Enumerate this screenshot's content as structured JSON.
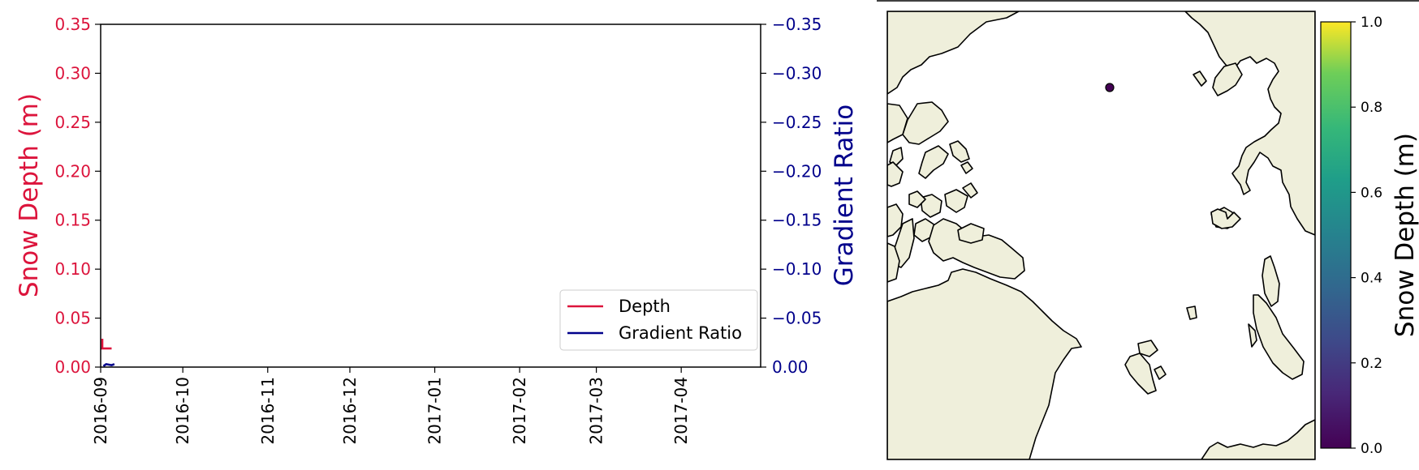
{
  "chart_data": [
    {
      "type": "line",
      "title": "",
      "xlabel": "",
      "x_range": [
        "2016-09-01",
        "2017-04-30"
      ],
      "x_ticks": [
        "2016-09",
        "2016-10",
        "2016-11",
        "2016-12",
        "2017-01",
        "2017-02",
        "2017-03",
        "2017-04"
      ],
      "left_axis": {
        "label": "Snow Depth (m)",
        "color": "#dc143c",
        "ylim": [
          0.0,
          0.35
        ],
        "ticks": [
          "0.00",
          "0.05",
          "0.10",
          "0.15",
          "0.20",
          "0.25",
          "0.30",
          "0.35"
        ]
      },
      "right_axis": {
        "label": "Gradient Ratio",
        "color": "#00008b",
        "ylim": [
          0.0,
          -0.35
        ],
        "inverted": true,
        "ticks": [
          "0.00",
          "−0.05",
          "−0.10",
          "−0.15",
          "−0.20",
          "−0.25",
          "−0.30",
          "−0.35"
        ]
      },
      "series": [
        {
          "name": "Depth",
          "axis": "left",
          "color": "#dc143c",
          "points": [
            {
              "x": "2016-09-01",
              "y": 0.019
            },
            {
              "x": "2016-09-05",
              "y": 0.019
            }
          ]
        },
        {
          "name": "Gradient Ratio",
          "axis": "right",
          "color": "#00008b",
          "points": [
            {
              "x": "2016-09-02",
              "y": -0.001
            },
            {
              "x": "2016-09-03",
              "y": -0.003
            },
            {
              "x": "2016-09-05",
              "y": -0.002
            },
            {
              "x": "2016-09-06",
              "y": -0.003
            }
          ]
        }
      ],
      "legend": {
        "position": "lower-right",
        "entries": [
          "Depth",
          "Gradient Ratio"
        ]
      },
      "grid": false
    },
    {
      "type": "map",
      "title": "",
      "projection": "north-polar",
      "land_color": "#efefdb",
      "ocean_color": "#ffffff",
      "points": [
        {
          "value": 0.02,
          "color": "#440154"
        }
      ],
      "colorbar": {
        "label": "Snow Depth (m)",
        "colormap": "viridis",
        "range": [
          0.0,
          1.0
        ],
        "ticks": [
          "0.0",
          "0.2",
          "0.4",
          "0.6",
          "0.8",
          "1.0"
        ]
      }
    }
  ]
}
